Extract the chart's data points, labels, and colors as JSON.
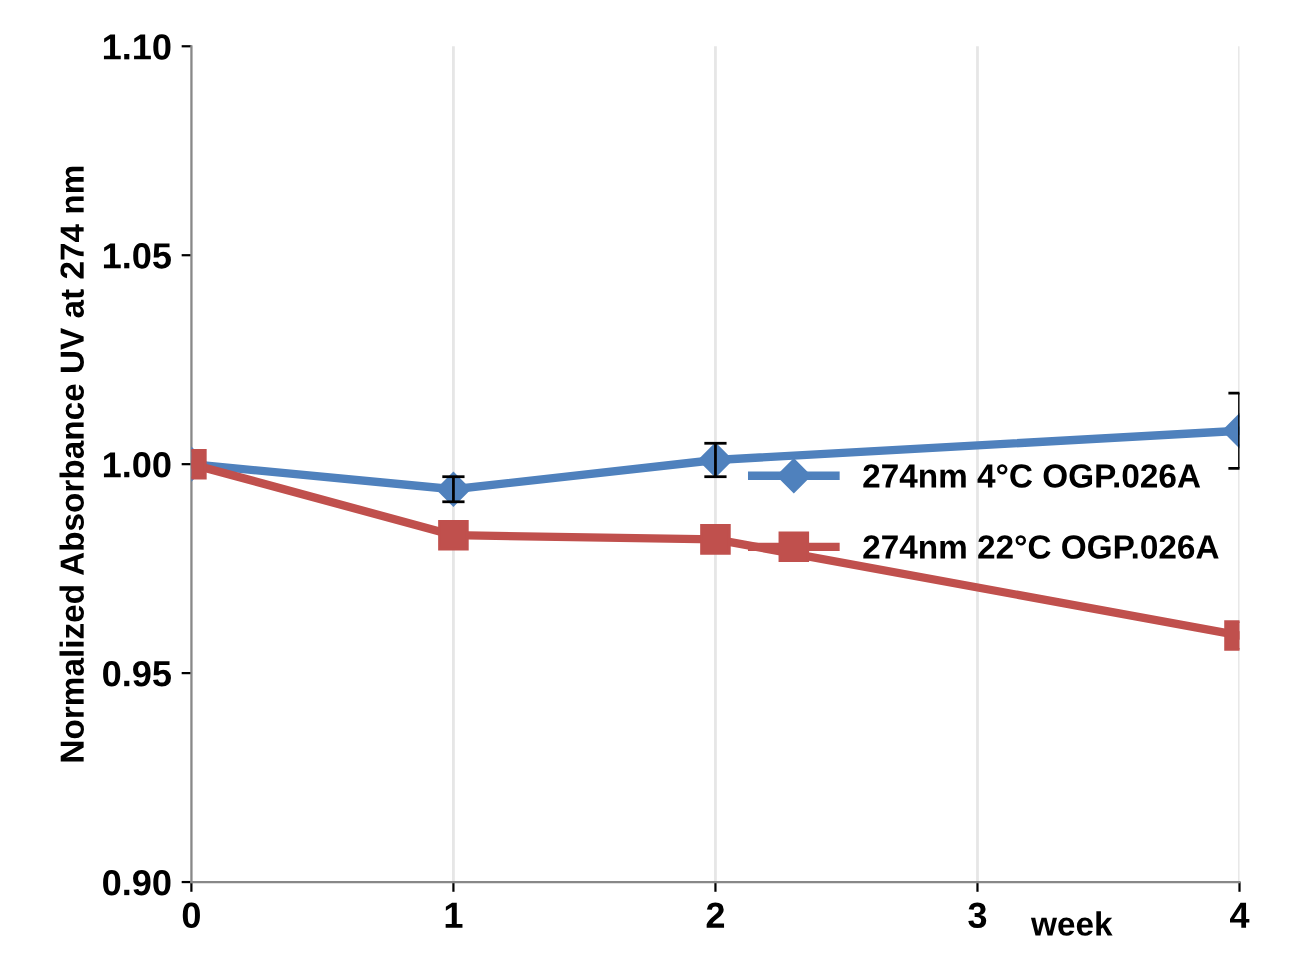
{
  "chart_data": {
    "type": "line",
    "xlabel": "week",
    "ylabel": "Normalized Absorbance UV at 274 nm",
    "x": [
      0,
      1,
      2,
      4
    ],
    "xlim": [
      0,
      4
    ],
    "xticks": [
      0,
      1,
      2,
      3,
      4
    ],
    "ylim": [
      0.9,
      1.1
    ],
    "yticks": [
      {
        "value": 0.9,
        "label": "0.90"
      },
      {
        "value": 0.95,
        "label": "0.95"
      },
      {
        "value": 1.0,
        "label": "1.00"
      },
      {
        "value": 1.05,
        "label": "1.05"
      },
      {
        "value": 1.1,
        "label": "1.10"
      }
    ],
    "grid": "x",
    "legend": "right",
    "line_style": "solid",
    "series": [
      {
        "name": "274nm 4°C OGP.026A",
        "color": "#4f81bd",
        "marker": "diamond",
        "values": [
          1.0,
          0.994,
          1.001,
          1.008
        ],
        "errors": [
          null,
          0.003,
          0.004,
          0.009
        ]
      },
      {
        "name": "274nm 22°C OGP.026A",
        "color": "#c0504d",
        "marker": "square",
        "values": [
          1.0,
          0.983,
          0.982,
          0.959
        ]
      }
    ]
  }
}
